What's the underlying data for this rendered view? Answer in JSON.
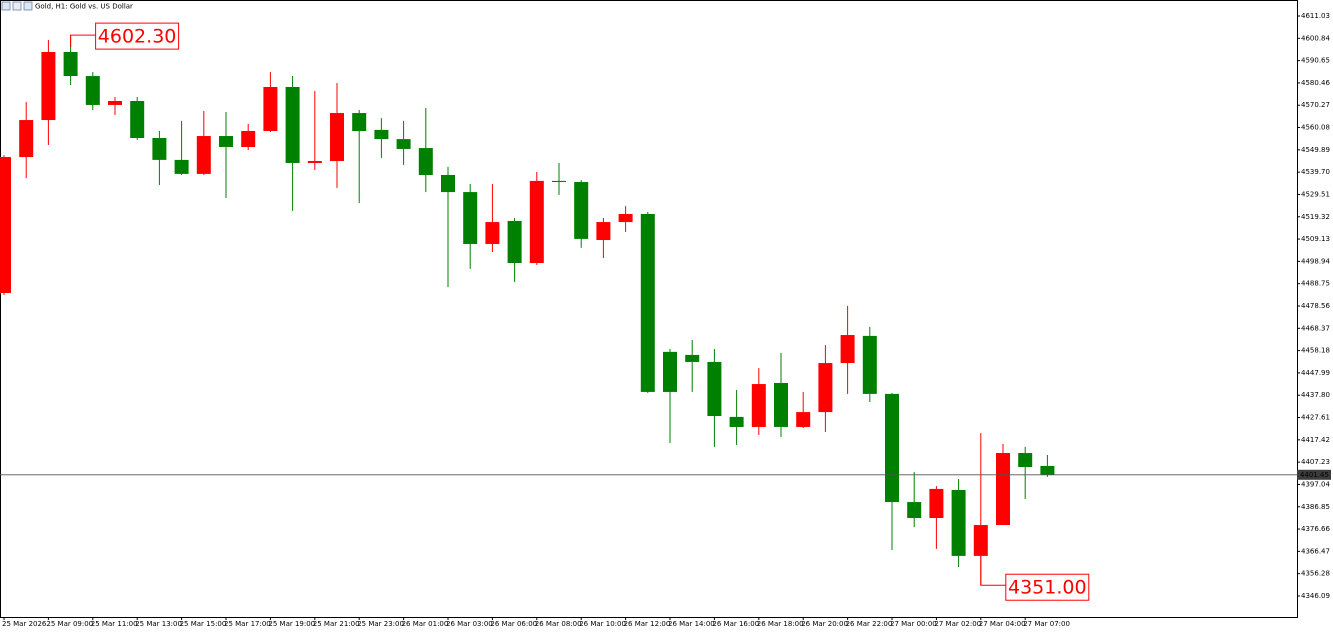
{
  "chart_data": {
    "type": "candlestick",
    "title": "Gold, H1:  Gold vs. US Dollar",
    "categories": [
      "25 Mar 2026",
      null,
      "25 Mar 09:00",
      null,
      "25 Mar 11:00",
      null,
      "25 Mar 13:00",
      null,
      "25 Mar 15:00",
      null,
      "25 Mar 17:00",
      null,
      "25 Mar 19:00",
      null,
      "25 Mar 21:00",
      null,
      "25 Mar 23:00",
      null,
      "26 Mar 01:00",
      null,
      "26 Mar 03:00",
      null,
      "26 Mar 06:00",
      null,
      "26 Mar 08:00",
      null,
      "26 Mar 10:00",
      null,
      "26 Mar 12:00",
      null,
      "26 Mar 14:00",
      null,
      "26 Mar 16:00",
      null,
      "26 Mar 18:00",
      null,
      "26 Mar 20:00",
      null,
      "26 Mar 22:00",
      null,
      "27 Mar 00:00",
      null,
      "27 Mar 02:00",
      null,
      "27 Mar 04:00",
      null,
      "27 Mar 07:00",
      null
    ],
    "open": [
      4484.5,
      4546.6,
      4563.5,
      4594.6,
      4583.6,
      4570.4,
      4572.2,
      4555.3,
      4545.3,
      4538.9,
      4556.2,
      4551.2,
      4558.5,
      4578.6,
      4543.9,
      4544.8,
      4566.7,
      4559.0,
      4554.8,
      4550.7,
      4538.4,
      4530.6,
      4506.9,
      4517.4,
      4498.2,
      4535.7,
      4535.2,
      4508.7,
      4516.9,
      4520.6,
      4457.6,
      4456.2,
      4453.0,
      4427.9,
      4423.3,
      4443.4,
      4423.3,
      4430.1,
      4452.5,
      4464.9,
      4438.4,
      4389.0,
      4381.7,
      4394.5,
      4364.4,
      4378.5,
      4411.4,
      4405.5
    ],
    "high": [
      4547.5,
      4571.7,
      4600.1,
      4602.3,
      4585.4,
      4574.0,
      4574.0,
      4558.5,
      4563.1,
      4567.6,
      4567.2,
      4561.7,
      4585.4,
      4583.6,
      4576.8,
      4580.4,
      4568.1,
      4564.4,
      4563.1,
      4569.0,
      4542.1,
      4534.3,
      4534.3,
      4518.8,
      4539.8,
      4543.9,
      4536.1,
      4518.8,
      4524.2,
      4521.5,
      4458.9,
      4463.0,
      4458.9,
      4440.2,
      4450.2,
      4457.1,
      4439.3,
      4460.7,
      4478.6,
      4469.0,
      4438.8,
      4402.7,
      4396.3,
      4399.5,
      4420.5,
      4415.5,
      4414.2,
      4410.5
    ],
    "low": [
      4483.6,
      4537.0,
      4552.1,
      4579.5,
      4568.1,
      4565.8,
      4554.4,
      4533.8,
      4538.4,
      4538.4,
      4527.9,
      4549.8,
      4558.0,
      4522.0,
      4540.7,
      4532.5,
      4525.6,
      4546.2,
      4543.0,
      4530.6,
      4487.2,
      4495.5,
      4503.2,
      4489.5,
      4497.3,
      4529.3,
      4505.1,
      4500.5,
      4512.4,
      4438.8,
      4416.0,
      4439.3,
      4414.2,
      4415.1,
      4419.6,
      4418.7,
      4422.8,
      4421.0,
      4438.4,
      4434.7,
      4367.1,
      4377.6,
      4367.6,
      4359.3,
      4351.0,
      4378.5,
      4390.4,
      4400.5
    ],
    "close": [
      4546.6,
      4563.5,
      4594.6,
      4583.6,
      4570.4,
      4572.2,
      4555.3,
      4545.3,
      4538.9,
      4556.2,
      4551.2,
      4558.5,
      4578.6,
      4543.9,
      4544.8,
      4566.7,
      4558.5,
      4554.8,
      4550.3,
      4538.4,
      4530.6,
      4506.9,
      4516.9,
      4498.2,
      4535.7,
      4535.2,
      4509.2,
      4516.9,
      4520.6,
      4439.3,
      4439.3,
      4453.0,
      4428.3,
      4423.3,
      4442.9,
      4423.3,
      4430.1,
      4452.5,
      4465.3,
      4438.4,
      4389.0,
      4381.7,
      4395.0,
      4364.4,
      4378.5,
      4411.4,
      4405.0,
      4401.45
    ],
    "up_color": "#ff0000",
    "down_color": "#008000",
    "ylim": [
      4336.49,
      4618.34
    ],
    "yticks": [
      {
        "value": 4611.03,
        "label": "4611.03"
      },
      {
        "value": 4600.84,
        "label": "4600.84"
      },
      {
        "value": 4590.65,
        "label": "4590.65"
      },
      {
        "value": 4580.46,
        "label": "4580.46"
      },
      {
        "value": 4570.27,
        "label": "4570.27"
      },
      {
        "value": 4560.08,
        "label": "4560.08"
      },
      {
        "value": 4549.89,
        "label": "4549.89"
      },
      {
        "value": 4539.7,
        "label": "4539.70"
      },
      {
        "value": 4529.51,
        "label": "4529.51"
      },
      {
        "value": 4519.32,
        "label": "4519.32"
      },
      {
        "value": 4509.13,
        "label": "4509.13"
      },
      {
        "value": 4498.94,
        "label": "4498.94"
      },
      {
        "value": 4488.75,
        "label": "4488.75"
      },
      {
        "value": 4478.56,
        "label": "4478.56"
      },
      {
        "value": 4468.37,
        "label": "4468.37"
      },
      {
        "value": 4458.18,
        "label": "4458.18"
      },
      {
        "value": 4447.99,
        "label": "4447.99"
      },
      {
        "value": 4437.8,
        "label": "4437.80"
      },
      {
        "value": 4427.61,
        "label": "4427.61"
      },
      {
        "value": 4417.42,
        "label": "4417.42"
      },
      {
        "value": 4407.23,
        "label": "4407.23"
      },
      {
        "value": 4397.04,
        "label": "4397.04"
      },
      {
        "value": 4386.85,
        "label": "4386.85"
      },
      {
        "value": 4376.66,
        "label": "4376.66"
      },
      {
        "value": 4366.47,
        "label": "4366.47"
      },
      {
        "value": 4356.28,
        "label": "4356.28"
      },
      {
        "value": 4346.09,
        "label": "4346.09"
      }
    ],
    "current_price": 4401.45,
    "annotations": [
      {
        "value": 4602.3,
        "label": "4602.30"
      },
      {
        "value": 4351.0,
        "label": "4351.00"
      }
    ],
    "grid": false
  }
}
